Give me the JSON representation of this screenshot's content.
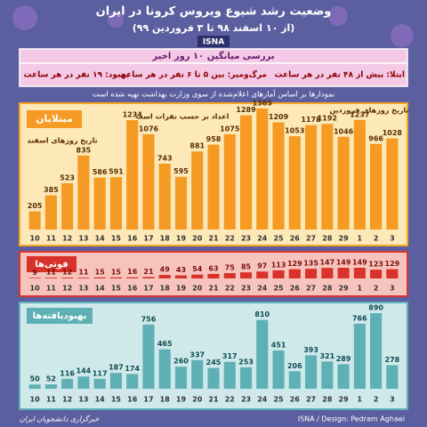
{
  "header": {
    "title": "وضعیت رشد شیوع ویروس کرونا در ایران",
    "subtitle": "(از ۱۰ اسفند ۹۸ تا ۳ فروردین ۹۹)",
    "brand": "ISNA"
  },
  "summary": {
    "heading": "بررسی میانگین ۱۰ روز اخیر",
    "infection": "ابتلا: بیش از ۴۸ نفر در هر ساعت",
    "death": "مرگ‌ومیر: بین ۵ تا ۶ نفر در هر ساعت",
    "recovery": "بهبود: ۱۹ نفر در هر ساعت",
    "note": "نمودارها بر اساس آمارهای اعلام‌شده از سوی وزارت بهداشت تهیه شده است"
  },
  "chart_data": [
    {
      "type": "bar",
      "title": "مبتلایان",
      "color": "#f59a23",
      "label_color": "#5a2d00",
      "annotations": [
        "تاریخ روزهای اسفند",
        "اعداد بر حسب نفرات است",
        "تاریخ روزهای فروردین"
      ],
      "categories": [
        "10",
        "11",
        "12",
        "13",
        "14",
        "15",
        "16",
        "17",
        "18",
        "19",
        "20",
        "21",
        "22",
        "23",
        "24",
        "25",
        "26",
        "27",
        "28",
        "29",
        "1",
        "2",
        "3"
      ],
      "values": [
        205,
        385,
        523,
        835,
        586,
        591,
        1234,
        1076,
        743,
        595,
        881,
        958,
        1075,
        1289,
        1365,
        1209,
        1053,
        1178,
        1192,
        1046,
        1237,
        966,
        1028
      ]
    },
    {
      "type": "bar",
      "title": "فوتی‌ها",
      "color": "#d8332a",
      "label_color": "#7a0f0a",
      "categories": [
        "10",
        "11",
        "12",
        "13",
        "14",
        "15",
        "16",
        "17",
        "18",
        "19",
        "20",
        "21",
        "22",
        "23",
        "24",
        "25",
        "26",
        "27",
        "28",
        "29",
        "1",
        "2",
        "3"
      ],
      "values": [
        9,
        11,
        12,
        11,
        15,
        15,
        16,
        21,
        49,
        43,
        54,
        63,
        75,
        85,
        97,
        113,
        129,
        135,
        147,
        149,
        149,
        123,
        129
      ]
    },
    {
      "type": "bar",
      "title": "بهبودیافته‌ها",
      "color": "#5fb0b5",
      "label_color": "#0e4c52",
      "categories": [
        "10",
        "11",
        "12",
        "13",
        "14",
        "15",
        "16",
        "17",
        "18",
        "19",
        "20",
        "21",
        "22",
        "23",
        "24",
        "25",
        "26",
        "27",
        "28",
        "29",
        "1",
        "2",
        "3"
      ],
      "values": [
        50,
        52,
        116,
        144,
        117,
        187,
        174,
        756,
        465,
        260,
        337,
        245,
        317,
        253,
        810,
        451,
        206,
        393,
        321,
        289,
        766,
        890,
        278
      ]
    }
  ],
  "footer": {
    "credit": "ISNA / Design: Pedram Aghaei",
    "agency": "خبرگزاری دانشجویان ایران"
  }
}
